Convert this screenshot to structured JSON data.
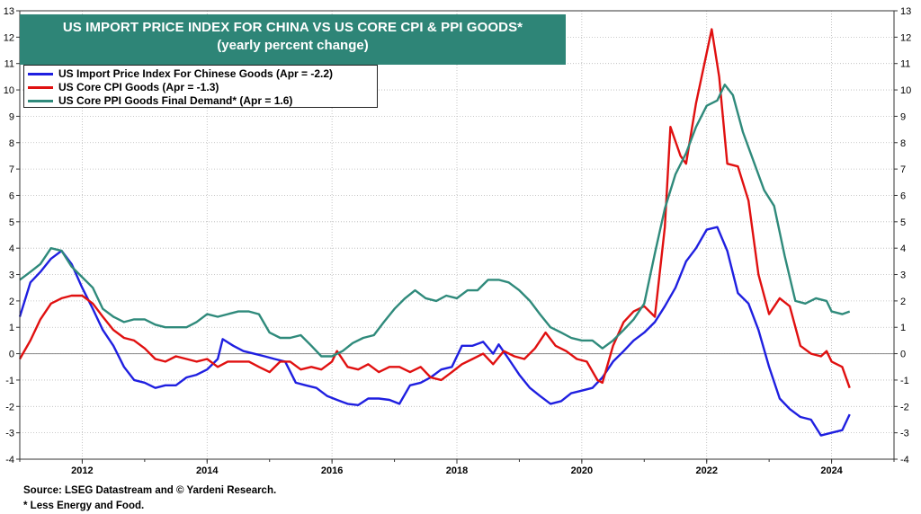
{
  "chart_data": {
    "type": "line",
    "title": "US IMPORT PRICE INDEX FOR CHINA VS US CORE CPI & PPI GOODS*",
    "subtitle": "(yearly percent change)",
    "ylim": [
      -4,
      13
    ],
    "y_ticks": [
      -4,
      -3,
      -2,
      -1,
      0,
      1,
      2,
      3,
      4,
      5,
      6,
      7,
      8,
      9,
      10,
      11,
      12,
      13
    ],
    "xlim": [
      2011.0,
      2025.0
    ],
    "x_ticks": [
      2012,
      2014,
      2016,
      2018,
      2020,
      2022,
      2024
    ],
    "legend_position": "top-left",
    "grid": true,
    "zero_line": true,
    "series": [
      {
        "name": "US Import Price Index For Chinese Goods  (Apr = -2.2)",
        "color": "#1f1fe0",
        "points": [
          [
            2011.0,
            1.4
          ],
          [
            2011.17,
            2.7
          ],
          [
            2011.33,
            3.1
          ],
          [
            2011.5,
            3.6
          ],
          [
            2011.67,
            3.9
          ],
          [
            2011.83,
            3.4
          ],
          [
            2012.0,
            2.5
          ],
          [
            2012.17,
            1.7
          ],
          [
            2012.33,
            0.9
          ],
          [
            2012.5,
            0.3
          ],
          [
            2012.67,
            -0.5
          ],
          [
            2012.83,
            -1.0
          ],
          [
            2013.0,
            -1.1
          ],
          [
            2013.17,
            -1.3
          ],
          [
            2013.33,
            -1.2
          ],
          [
            2013.5,
            -1.2
          ],
          [
            2013.67,
            -0.9
          ],
          [
            2013.83,
            -0.8
          ],
          [
            2014.0,
            -0.6
          ],
          [
            2014.17,
            -0.2
          ],
          [
            2014.25,
            0.55
          ],
          [
            2014.42,
            0.3
          ],
          [
            2014.58,
            0.1
          ],
          [
            2014.75,
            0.0
          ],
          [
            2014.92,
            -0.1
          ],
          [
            2015.08,
            -0.2
          ],
          [
            2015.25,
            -0.3
          ],
          [
            2015.42,
            -1.1
          ],
          [
            2015.58,
            -1.2
          ],
          [
            2015.75,
            -1.3
          ],
          [
            2015.92,
            -1.6
          ],
          [
            2016.08,
            -1.75
          ],
          [
            2016.25,
            -1.9
          ],
          [
            2016.42,
            -1.95
          ],
          [
            2016.58,
            -1.7
          ],
          [
            2016.75,
            -1.7
          ],
          [
            2016.92,
            -1.75
          ],
          [
            2017.08,
            -1.9
          ],
          [
            2017.25,
            -1.2
          ],
          [
            2017.42,
            -1.1
          ],
          [
            2017.58,
            -0.9
          ],
          [
            2017.75,
            -0.6
          ],
          [
            2017.92,
            -0.5
          ],
          [
            2018.08,
            0.3
          ],
          [
            2018.25,
            0.3
          ],
          [
            2018.42,
            0.45
          ],
          [
            2018.58,
            0.0
          ],
          [
            2018.67,
            0.35
          ],
          [
            2018.83,
            -0.2
          ],
          [
            2019.0,
            -0.8
          ],
          [
            2019.17,
            -1.3
          ],
          [
            2019.33,
            -1.6
          ],
          [
            2019.5,
            -1.9
          ],
          [
            2019.67,
            -1.8
          ],
          [
            2019.83,
            -1.5
          ],
          [
            2020.0,
            -1.4
          ],
          [
            2020.17,
            -1.3
          ],
          [
            2020.33,
            -0.9
          ],
          [
            2020.5,
            -0.3
          ],
          [
            2020.67,
            0.1
          ],
          [
            2020.83,
            0.5
          ],
          [
            2021.0,
            0.8
          ],
          [
            2021.17,
            1.2
          ],
          [
            2021.33,
            1.8
          ],
          [
            2021.5,
            2.5
          ],
          [
            2021.67,
            3.5
          ],
          [
            2021.83,
            4.0
          ],
          [
            2022.0,
            4.7
          ],
          [
            2022.17,
            4.8
          ],
          [
            2022.33,
            3.9
          ],
          [
            2022.5,
            2.3
          ],
          [
            2022.67,
            1.9
          ],
          [
            2022.83,
            0.9
          ],
          [
            2023.0,
            -0.5
          ],
          [
            2023.17,
            -1.7
          ],
          [
            2023.33,
            -2.1
          ],
          [
            2023.5,
            -2.4
          ],
          [
            2023.67,
            -2.5
          ],
          [
            2023.83,
            -3.1
          ],
          [
            2024.0,
            -3.0
          ],
          [
            2024.17,
            -2.9
          ],
          [
            2024.29,
            -2.3
          ]
        ]
      },
      {
        "name": "US Core CPI Goods (Apr = -1.3)",
        "color": "#e01010",
        "points": [
          [
            2011.0,
            -0.2
          ],
          [
            2011.17,
            0.5
          ],
          [
            2011.33,
            1.3
          ],
          [
            2011.5,
            1.9
          ],
          [
            2011.67,
            2.1
          ],
          [
            2011.83,
            2.2
          ],
          [
            2012.0,
            2.2
          ],
          [
            2012.17,
            1.9
          ],
          [
            2012.33,
            1.4
          ],
          [
            2012.5,
            0.9
          ],
          [
            2012.67,
            0.6
          ],
          [
            2012.83,
            0.5
          ],
          [
            2013.0,
            0.2
          ],
          [
            2013.17,
            -0.2
          ],
          [
            2013.33,
            -0.3
          ],
          [
            2013.5,
            -0.1
          ],
          [
            2013.67,
            -0.2
          ],
          [
            2013.83,
            -0.3
          ],
          [
            2014.0,
            -0.2
          ],
          [
            2014.17,
            -0.5
          ],
          [
            2014.33,
            -0.3
          ],
          [
            2014.5,
            -0.3
          ],
          [
            2014.67,
            -0.3
          ],
          [
            2014.83,
            -0.5
          ],
          [
            2015.0,
            -0.7
          ],
          [
            2015.17,
            -0.3
          ],
          [
            2015.33,
            -0.3
          ],
          [
            2015.5,
            -0.6
          ],
          [
            2015.67,
            -0.5
          ],
          [
            2015.83,
            -0.6
          ],
          [
            2016.0,
            -0.3
          ],
          [
            2016.08,
            0.1
          ],
          [
            2016.25,
            -0.5
          ],
          [
            2016.42,
            -0.6
          ],
          [
            2016.58,
            -0.4
          ],
          [
            2016.75,
            -0.7
          ],
          [
            2016.92,
            -0.5
          ],
          [
            2017.08,
            -0.5
          ],
          [
            2017.25,
            -0.7
          ],
          [
            2017.42,
            -0.5
          ],
          [
            2017.58,
            -0.9
          ],
          [
            2017.75,
            -1.0
          ],
          [
            2017.92,
            -0.7
          ],
          [
            2018.08,
            -0.4
          ],
          [
            2018.25,
            -0.2
          ],
          [
            2018.42,
            0.0
          ],
          [
            2018.58,
            -0.4
          ],
          [
            2018.75,
            0.1
          ],
          [
            2018.92,
            -0.1
          ],
          [
            2019.08,
            -0.2
          ],
          [
            2019.25,
            0.2
          ],
          [
            2019.42,
            0.8
          ],
          [
            2019.58,
            0.3
          ],
          [
            2019.75,
            0.1
          ],
          [
            2019.92,
            -0.2
          ],
          [
            2020.08,
            -0.3
          ],
          [
            2020.25,
            -1.0
          ],
          [
            2020.33,
            -1.1
          ],
          [
            2020.5,
            0.3
          ],
          [
            2020.67,
            1.2
          ],
          [
            2020.83,
            1.6
          ],
          [
            2021.0,
            1.8
          ],
          [
            2021.17,
            1.4
          ],
          [
            2021.33,
            4.8
          ],
          [
            2021.42,
            8.6
          ],
          [
            2021.58,
            7.5
          ],
          [
            2021.67,
            7.2
          ],
          [
            2021.83,
            9.5
          ],
          [
            2022.0,
            11.4
          ],
          [
            2022.08,
            12.3
          ],
          [
            2022.2,
            10.5
          ],
          [
            2022.33,
            7.2
          ],
          [
            2022.5,
            7.1
          ],
          [
            2022.67,
            5.8
          ],
          [
            2022.83,
            3.0
          ],
          [
            2023.0,
            1.5
          ],
          [
            2023.17,
            2.1
          ],
          [
            2023.33,
            1.8
          ],
          [
            2023.5,
            0.3
          ],
          [
            2023.67,
            0.0
          ],
          [
            2023.83,
            -0.1
          ],
          [
            2023.92,
            0.1
          ],
          [
            2024.0,
            -0.3
          ],
          [
            2024.17,
            -0.5
          ],
          [
            2024.29,
            -1.3
          ]
        ]
      },
      {
        "name": "US Core PPI Goods Final Demand* (Apr = 1.6)",
        "color": "#2f8a7b",
        "points": [
          [
            2011.0,
            2.8
          ],
          [
            2011.17,
            3.1
          ],
          [
            2011.33,
            3.4
          ],
          [
            2011.5,
            4.0
          ],
          [
            2011.67,
            3.9
          ],
          [
            2011.83,
            3.3
          ],
          [
            2012.0,
            2.9
          ],
          [
            2012.17,
            2.5
          ],
          [
            2012.33,
            1.7
          ],
          [
            2012.5,
            1.4
          ],
          [
            2012.67,
            1.2
          ],
          [
            2012.83,
            1.3
          ],
          [
            2013.0,
            1.3
          ],
          [
            2013.17,
            1.1
          ],
          [
            2013.33,
            1.0
          ],
          [
            2013.5,
            1.0
          ],
          [
            2013.67,
            1.0
          ],
          [
            2013.83,
            1.2
          ],
          [
            2014.0,
            1.5
          ],
          [
            2014.17,
            1.4
          ],
          [
            2014.33,
            1.5
          ],
          [
            2014.5,
            1.6
          ],
          [
            2014.67,
            1.6
          ],
          [
            2014.83,
            1.5
          ],
          [
            2015.0,
            0.8
          ],
          [
            2015.17,
            0.6
          ],
          [
            2015.33,
            0.6
          ],
          [
            2015.5,
            0.7
          ],
          [
            2015.67,
            0.3
          ],
          [
            2015.83,
            -0.1
          ],
          [
            2016.0,
            -0.1
          ],
          [
            2016.17,
            0.1
          ],
          [
            2016.33,
            0.4
          ],
          [
            2016.5,
            0.6
          ],
          [
            2016.67,
            0.7
          ],
          [
            2016.83,
            1.2
          ],
          [
            2017.0,
            1.7
          ],
          [
            2017.17,
            2.1
          ],
          [
            2017.33,
            2.4
          ],
          [
            2017.5,
            2.1
          ],
          [
            2017.67,
            2.0
          ],
          [
            2017.83,
            2.2
          ],
          [
            2018.0,
            2.1
          ],
          [
            2018.17,
            2.4
          ],
          [
            2018.33,
            2.4
          ],
          [
            2018.5,
            2.8
          ],
          [
            2018.67,
            2.8
          ],
          [
            2018.83,
            2.7
          ],
          [
            2019.0,
            2.4
          ],
          [
            2019.17,
            2.0
          ],
          [
            2019.33,
            1.5
          ],
          [
            2019.5,
            1.0
          ],
          [
            2019.67,
            0.8
          ],
          [
            2019.83,
            0.6
          ],
          [
            2020.0,
            0.5
          ],
          [
            2020.17,
            0.5
          ],
          [
            2020.33,
            0.2
          ],
          [
            2020.5,
            0.5
          ],
          [
            2020.67,
            0.9
          ],
          [
            2020.83,
            1.3
          ],
          [
            2021.0,
            1.9
          ],
          [
            2021.17,
            3.8
          ],
          [
            2021.33,
            5.5
          ],
          [
            2021.5,
            6.8
          ],
          [
            2021.67,
            7.6
          ],
          [
            2021.83,
            8.6
          ],
          [
            2022.0,
            9.4
          ],
          [
            2022.17,
            9.6
          ],
          [
            2022.29,
            10.2
          ],
          [
            2022.42,
            9.8
          ],
          [
            2022.58,
            8.4
          ],
          [
            2022.75,
            7.3
          ],
          [
            2022.92,
            6.2
          ],
          [
            2023.08,
            5.6
          ],
          [
            2023.25,
            3.7
          ],
          [
            2023.42,
            2.0
          ],
          [
            2023.58,
            1.9
          ],
          [
            2023.75,
            2.1
          ],
          [
            2023.92,
            2.0
          ],
          [
            2024.0,
            1.6
          ],
          [
            2024.17,
            1.5
          ],
          [
            2024.29,
            1.6
          ]
        ]
      }
    ]
  },
  "source_note": "Source: LSEG Datastream and © Yardeni Research.",
  "footnote": "* Less Energy and Food."
}
